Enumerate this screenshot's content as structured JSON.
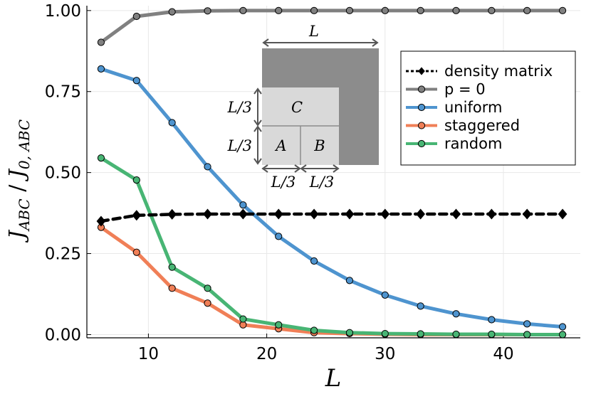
{
  "chart_data": {
    "type": "line",
    "xlabel": "L",
    "ylabel": {
      "base": "J",
      "num_sub": "ABC",
      "sep": " / ",
      "den_sub": "0, ABC"
    },
    "xlim": [
      4.8,
      46.5
    ],
    "ylim": [
      -0.01,
      1.015
    ],
    "xticks": [
      10,
      20,
      30,
      40
    ],
    "xtick_labels": [
      "10",
      "20",
      "30",
      "40"
    ],
    "yticks": [
      0,
      0.25,
      0.5,
      0.75,
      1.0
    ],
    "ytick_labels": [
      "0.00",
      "0.25",
      "0.50",
      "0.75",
      "1.00"
    ],
    "grid": true,
    "legend_position": "top-right",
    "x": [
      6,
      9,
      12,
      15,
      18,
      21,
      24,
      27,
      30,
      33,
      36,
      39,
      42,
      45
    ],
    "series": [
      {
        "name": "density matrix",
        "color": "#000000",
        "marker": "diamond",
        "dashed": true,
        "values": [
          0.35,
          0.368,
          0.371,
          0.372,
          0.372,
          0.372,
          0.372,
          0.372,
          0.372,
          0.372,
          0.372,
          0.372,
          0.372,
          0.372
        ]
      },
      {
        "name": "p = 0",
        "color": "#808080",
        "marker": "circle",
        "dashed": false,
        "values": [
          0.902,
          0.982,
          0.996,
          0.999,
          1.0,
          1.0,
          1.0,
          1.0,
          1.0,
          1.0,
          1.0,
          1.0,
          1.0,
          1.0
        ]
      },
      {
        "name": "uniform",
        "color": "#4e94cf",
        "marker": "circle",
        "dashed": false,
        "values": [
          0.82,
          0.784,
          0.654,
          0.518,
          0.4,
          0.303,
          0.227,
          0.167,
          0.122,
          0.088,
          0.064,
          0.046,
          0.033,
          0.024
        ]
      },
      {
        "name": "staggered",
        "color": "#f07f57",
        "marker": "circle",
        "dashed": false,
        "values": [
          0.331,
          0.254,
          0.143,
          0.097,
          0.03,
          0.018,
          0.006,
          0.003,
          0.001,
          0.0,
          0.0,
          0.0,
          0.0,
          0.0
        ]
      },
      {
        "name": "random",
        "color": "#48b574",
        "marker": "circle",
        "dashed": false,
        "values": [
          0.545,
          0.477,
          0.208,
          0.143,
          0.048,
          0.03,
          0.013,
          0.006,
          0.003,
          0.002,
          0.001,
          0.001,
          0.0,
          0.0
        ]
      }
    ],
    "inset": {
      "top_label": "L",
      "region_labels": [
        "C",
        "A",
        "B"
      ],
      "side_labels": [
        "L/3",
        "L/3"
      ],
      "bottom_labels": [
        "L/3",
        "L/3"
      ]
    }
  }
}
